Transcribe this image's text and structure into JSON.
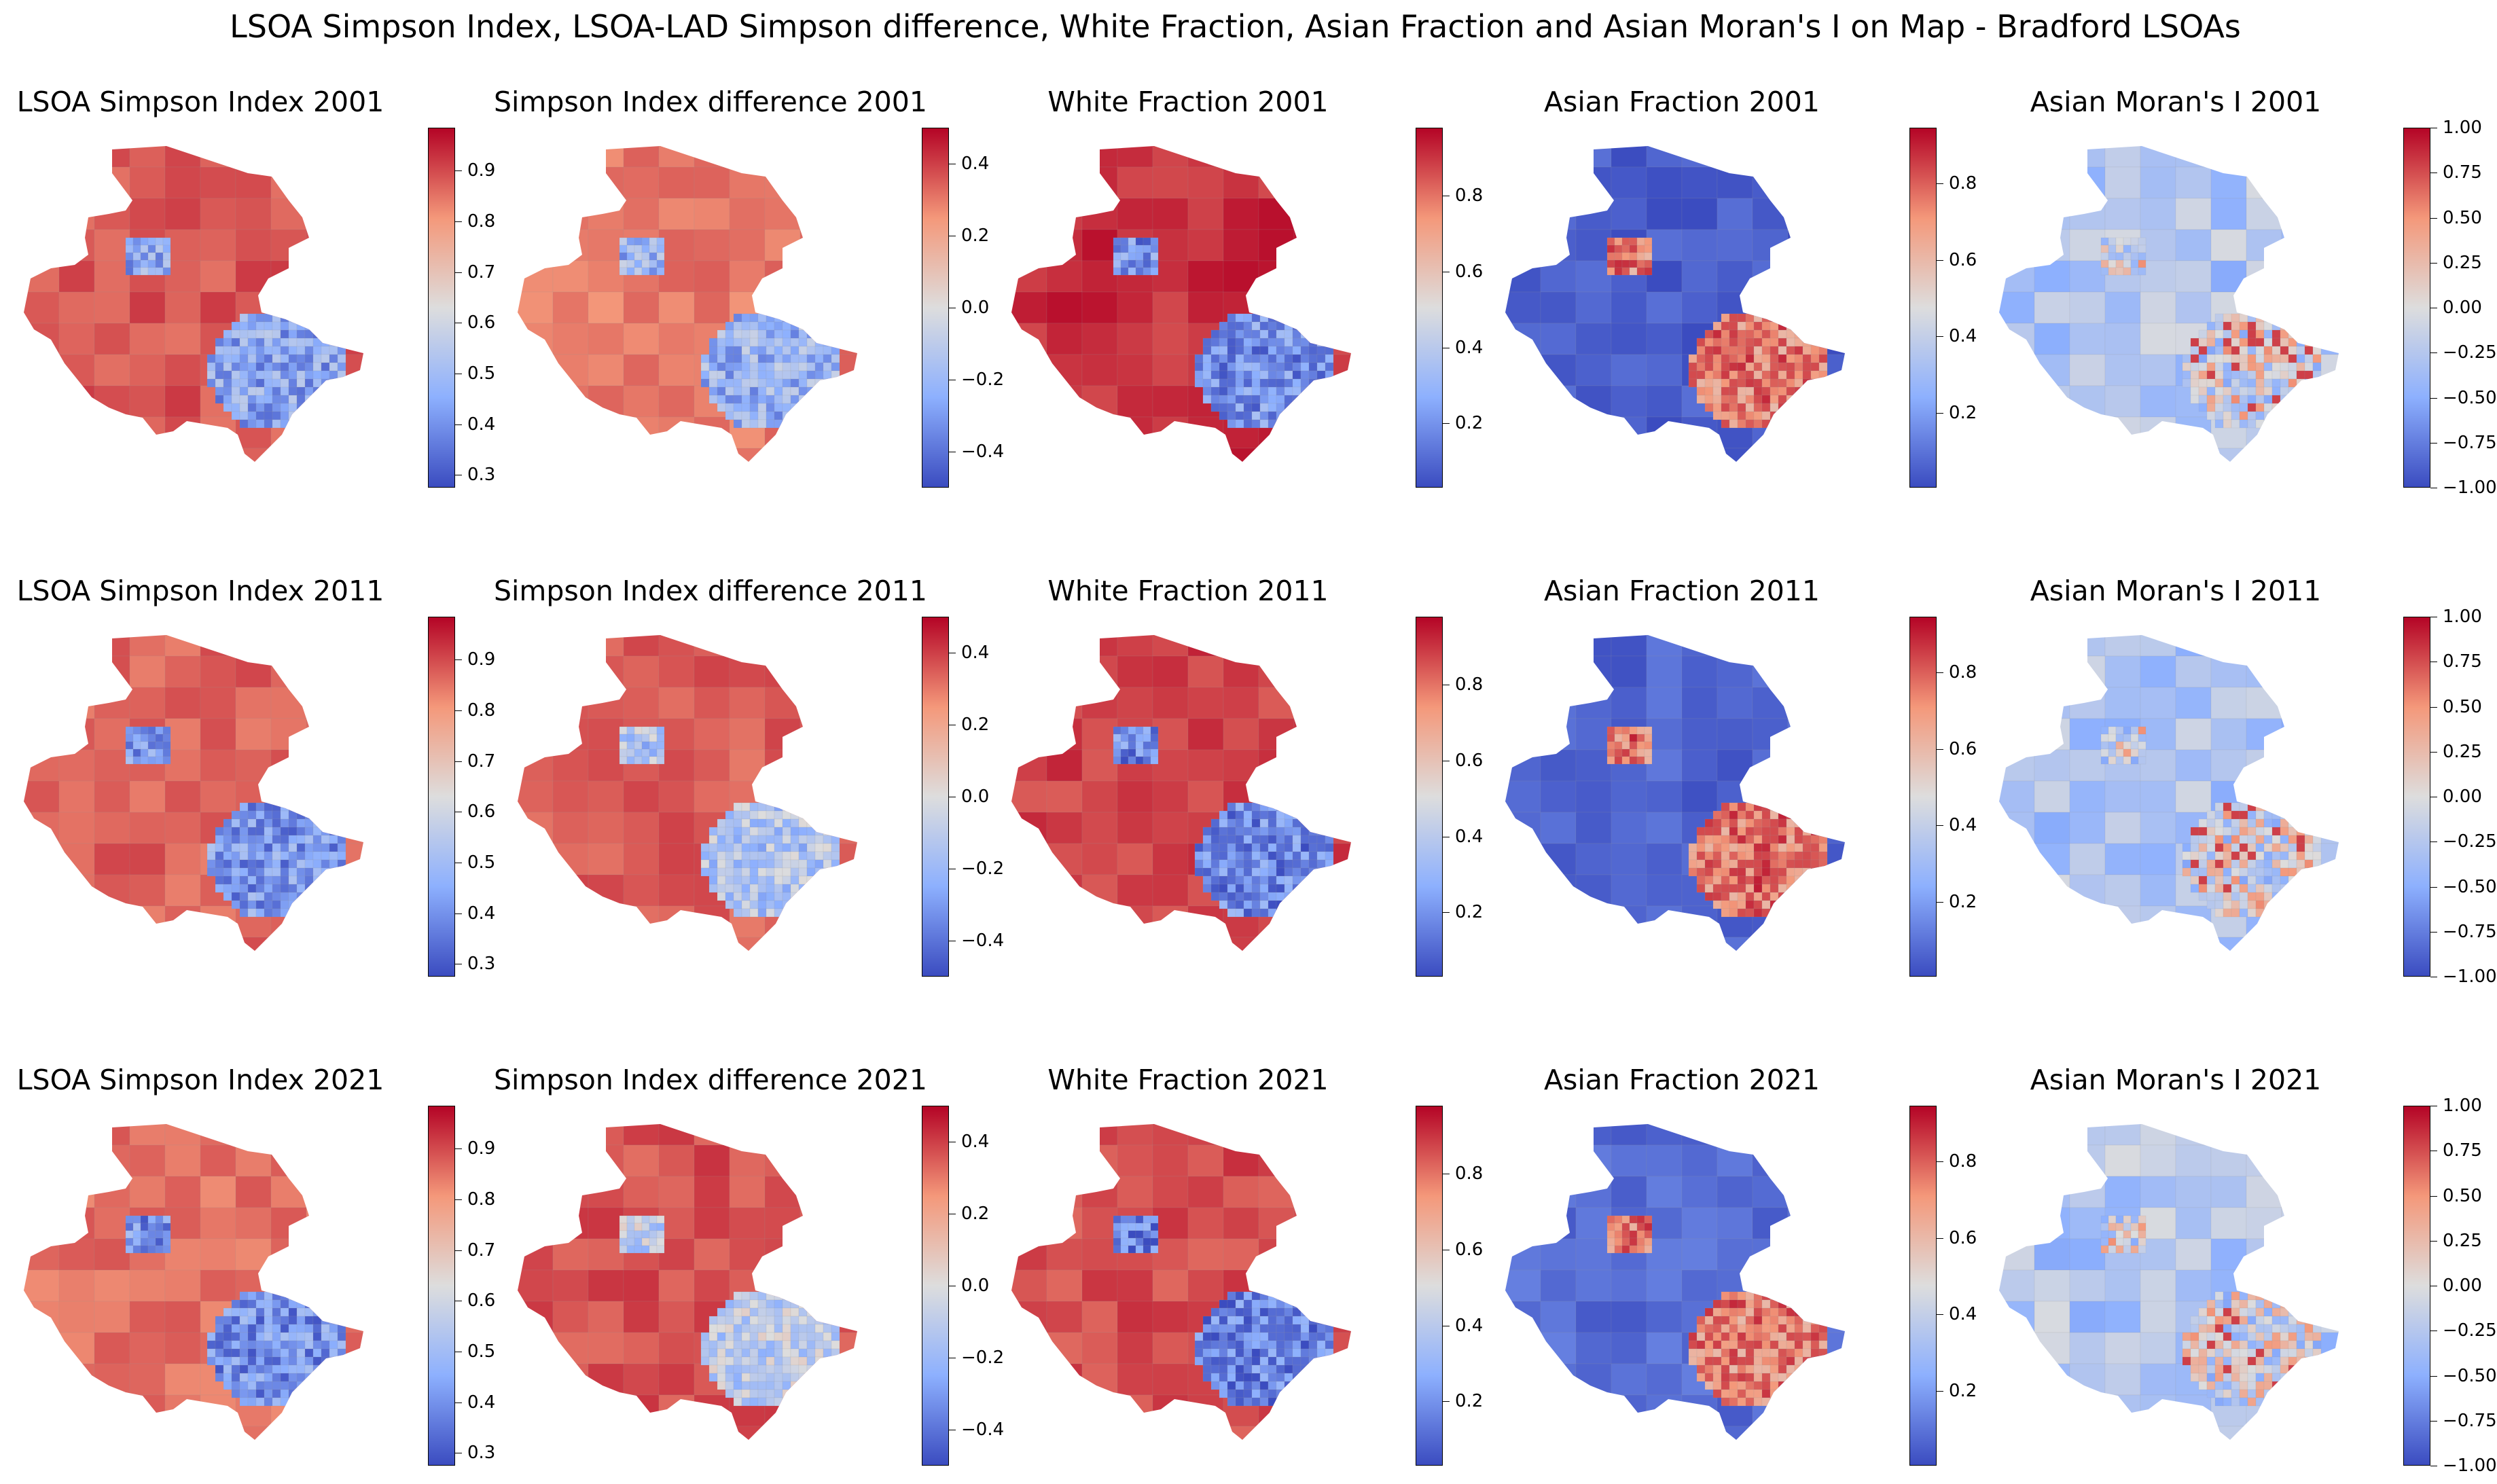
{
  "title": "LSOA Simpson Index, LSOA-LAD Simpson difference, White Fraction, Asian Fraction and Asian Moran's I on Map - Bradford LSOAs",
  "colormap": "coolwarm",
  "colormap_stops": [
    "#3b4cc0",
    "#8db0fe",
    "#dddddd",
    "#f4987a",
    "#b40426"
  ],
  "rows": [
    {
      "year": "2001",
      "panels": [
        {
          "title": "LSOA Simpson Index 2001",
          "metric": "simpson",
          "scheme": [
            0.86,
            0.24
          ],
          "colorbar": {
            "vmin": 0.275,
            "vmax": 0.985,
            "ticks": [
              {
                "value": 0.3,
                "label": "0.3"
              },
              {
                "value": 0.4,
                "label": "0.4"
              },
              {
                "value": 0.5,
                "label": "0.5"
              },
              {
                "value": 0.6,
                "label": "0.6"
              },
              {
                "value": 0.7,
                "label": "0.7"
              },
              {
                "value": 0.8,
                "label": "0.8"
              },
              {
                "value": 0.9,
                "label": "0.9"
              }
            ]
          }
        },
        {
          "title": "Simpson Index difference 2001",
          "metric": "diff",
          "scheme": [
            0.8,
            0.28
          ],
          "colorbar": {
            "vmin": -0.5,
            "vmax": 0.5,
            "ticks": [
              {
                "value": -0.4,
                "label": "−0.4"
              },
              {
                "value": -0.2,
                "label": "−0.2"
              },
              {
                "value": 0.0,
                "label": "0.0"
              },
              {
                "value": 0.2,
                "label": "0.2"
              },
              {
                "value": 0.4,
                "label": "0.4"
              }
            ]
          }
        },
        {
          "title": "White Fraction 2001",
          "metric": "white",
          "scheme": [
            0.93,
            0.18
          ],
          "colorbar": {
            "vmin": 0.03,
            "vmax": 0.98,
            "ticks": [
              {
                "value": 0.2,
                "label": "0.2"
              },
              {
                "value": 0.4,
                "label": "0.4"
              },
              {
                "value": 0.6,
                "label": "0.6"
              },
              {
                "value": 0.8,
                "label": "0.8"
              }
            ]
          }
        },
        {
          "title": "Asian Fraction 2001",
          "metric": "asian",
          "scheme": [
            0.04,
            0.78
          ],
          "colorbar": {
            "vmin": 0.005,
            "vmax": 0.945,
            "ticks": [
              {
                "value": 0.2,
                "label": "0.2"
              },
              {
                "value": 0.4,
                "label": "0.4"
              },
              {
                "value": 0.6,
                "label": "0.6"
              },
              {
                "value": 0.8,
                "label": "0.8"
              }
            ]
          }
        },
        {
          "title": "Asian Moran's I 2001",
          "metric": "moran",
          "scheme": [
            0.32,
            0.62
          ],
          "colorbar": {
            "vmin": -1.0,
            "vmax": 1.0,
            "ticks": [
              {
                "value": -1.0,
                "label": "−1.00"
              },
              {
                "value": -0.75,
                "label": "−0.75"
              },
              {
                "value": -0.5,
                "label": "−0.50"
              },
              {
                "value": -0.25,
                "label": "−0.25"
              },
              {
                "value": 0.0,
                "label": "0.00"
              },
              {
                "value": 0.25,
                "label": "0.25"
              },
              {
                "value": 0.5,
                "label": "0.50"
              },
              {
                "value": 0.75,
                "label": "0.75"
              },
              {
                "value": 1.0,
                "label": "1.00"
              }
            ]
          }
        }
      ]
    },
    {
      "year": "2011",
      "panels": [
        {
          "title": "LSOA Simpson Index 2011",
          "metric": "simpson",
          "scheme": [
            0.84,
            0.2
          ],
          "colorbar": {
            "vmin": 0.275,
            "vmax": 0.985,
            "ticks": [
              {
                "value": 0.3,
                "label": "0.3"
              },
              {
                "value": 0.4,
                "label": "0.4"
              },
              {
                "value": 0.5,
                "label": "0.5"
              },
              {
                "value": 0.6,
                "label": "0.6"
              },
              {
                "value": 0.7,
                "label": "0.7"
              },
              {
                "value": 0.8,
                "label": "0.8"
              },
              {
                "value": 0.9,
                "label": "0.9"
              }
            ]
          }
        },
        {
          "title": "Simpson Index difference 2011",
          "metric": "diff",
          "scheme": [
            0.85,
            0.36
          ],
          "colorbar": {
            "vmin": -0.5,
            "vmax": 0.5,
            "ticks": [
              {
                "value": -0.4,
                "label": "−0.4"
              },
              {
                "value": -0.2,
                "label": "−0.2"
              },
              {
                "value": 0.0,
                "label": "0.0"
              },
              {
                "value": 0.2,
                "label": "0.2"
              },
              {
                "value": 0.4,
                "label": "0.4"
              }
            ]
          }
        },
        {
          "title": "White Fraction 2011",
          "metric": "white",
          "scheme": [
            0.9,
            0.16
          ],
          "colorbar": {
            "vmin": 0.03,
            "vmax": 0.98,
            "ticks": [
              {
                "value": 0.2,
                "label": "0.2"
              },
              {
                "value": 0.4,
                "label": "0.4"
              },
              {
                "value": 0.6,
                "label": "0.6"
              },
              {
                "value": 0.8,
                "label": "0.8"
              }
            ]
          }
        },
        {
          "title": "Asian Fraction 2011",
          "metric": "asian",
          "scheme": [
            0.06,
            0.8
          ],
          "colorbar": {
            "vmin": 0.005,
            "vmax": 0.945,
            "ticks": [
              {
                "value": 0.2,
                "label": "0.2"
              },
              {
                "value": 0.4,
                "label": "0.4"
              },
              {
                "value": 0.6,
                "label": "0.6"
              },
              {
                "value": 0.8,
                "label": "0.8"
              }
            ]
          }
        },
        {
          "title": "Asian Moran's I 2011",
          "metric": "moran",
          "scheme": [
            0.36,
            0.6
          ],
          "colorbar": {
            "vmin": -1.0,
            "vmax": 1.0,
            "ticks": [
              {
                "value": -1.0,
                "label": "−1.00"
              },
              {
                "value": -0.75,
                "label": "−0.75"
              },
              {
                "value": -0.5,
                "label": "−0.50"
              },
              {
                "value": -0.25,
                "label": "−0.25"
              },
              {
                "value": 0.0,
                "label": "0.00"
              },
              {
                "value": 0.25,
                "label": "0.25"
              },
              {
                "value": 0.5,
                "label": "0.50"
              },
              {
                "value": 0.75,
                "label": "0.75"
              },
              {
                "value": 1.0,
                "label": "1.00"
              }
            ]
          }
        }
      ]
    },
    {
      "year": "2021",
      "panels": [
        {
          "title": "LSOA Simpson Index 2021",
          "metric": "simpson",
          "scheme": [
            0.82,
            0.18
          ],
          "colorbar": {
            "vmin": 0.275,
            "vmax": 0.985,
            "ticks": [
              {
                "value": 0.3,
                "label": "0.3"
              },
              {
                "value": 0.4,
                "label": "0.4"
              },
              {
                "value": 0.5,
                "label": "0.5"
              },
              {
                "value": 0.6,
                "label": "0.6"
              },
              {
                "value": 0.7,
                "label": "0.7"
              },
              {
                "value": 0.8,
                "label": "0.8"
              },
              {
                "value": 0.9,
                "label": "0.9"
              }
            ]
          }
        },
        {
          "title": "Simpson Index difference 2021",
          "metric": "diff",
          "scheme": [
            0.87,
            0.4
          ],
          "colorbar": {
            "vmin": -0.5,
            "vmax": 0.5,
            "ticks": [
              {
                "value": -0.4,
                "label": "−0.4"
              },
              {
                "value": -0.2,
                "label": "−0.2"
              },
              {
                "value": 0.0,
                "label": "0.0"
              },
              {
                "value": 0.2,
                "label": "0.2"
              },
              {
                "value": 0.4,
                "label": "0.4"
              }
            ]
          }
        },
        {
          "title": "White Fraction 2021",
          "metric": "white",
          "scheme": [
            0.88,
            0.14
          ],
          "colorbar": {
            "vmin": 0.03,
            "vmax": 0.98,
            "ticks": [
              {
                "value": 0.2,
                "label": "0.2"
              },
              {
                "value": 0.4,
                "label": "0.4"
              },
              {
                "value": 0.6,
                "label": "0.6"
              },
              {
                "value": 0.8,
                "label": "0.8"
              }
            ]
          }
        },
        {
          "title": "Asian Fraction 2021",
          "metric": "asian",
          "scheme": [
            0.08,
            0.78
          ],
          "colorbar": {
            "vmin": 0.005,
            "vmax": 0.945,
            "ticks": [
              {
                "value": 0.2,
                "label": "0.2"
              },
              {
                "value": 0.4,
                "label": "0.4"
              },
              {
                "value": 0.6,
                "label": "0.6"
              },
              {
                "value": 0.8,
                "label": "0.8"
              }
            ]
          }
        },
        {
          "title": "Asian Moran's I 2021",
          "metric": "moran",
          "scheme": [
            0.34,
            0.62
          ],
          "colorbar": {
            "vmin": -1.0,
            "vmax": 1.0,
            "ticks": [
              {
                "value": -1.0,
                "label": "−1.00"
              },
              {
                "value": -0.75,
                "label": "−0.75"
              },
              {
                "value": -0.5,
                "label": "−0.50"
              },
              {
                "value": -0.25,
                "label": "−0.25"
              },
              {
                "value": 0.0,
                "label": "0.00"
              },
              {
                "value": 0.25,
                "label": "0.25"
              },
              {
                "value": 0.5,
                "label": "0.50"
              },
              {
                "value": 0.75,
                "label": "0.75"
              },
              {
                "value": 1.0,
                "label": "1.00"
              }
            ]
          }
        }
      ]
    }
  ]
}
